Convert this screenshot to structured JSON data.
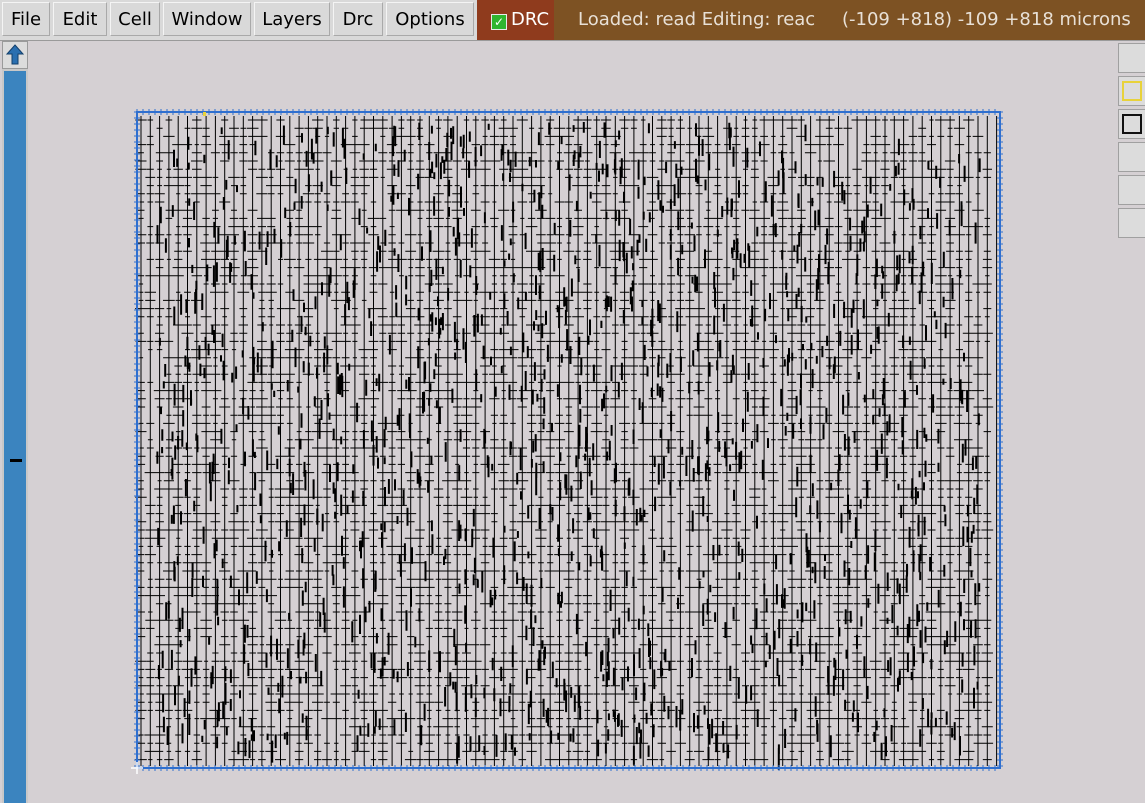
{
  "menu": {
    "file": "File",
    "edit": "Edit",
    "cell": "Cell",
    "window": "Window",
    "layers": "Layers",
    "drc": "Drc",
    "options": "Options"
  },
  "drc_toggle": {
    "label": "DRC",
    "checked": true
  },
  "status": {
    "loaded": "Loaded: read Editing: reac",
    "coords": "(-109 +818) -109 +818 microns"
  },
  "colors": {
    "menubar": "#d9d9d9",
    "drc_bg": "#8f3b1d",
    "status_bg": "#7d5223",
    "canvas_bg": "#d5d0d3",
    "boundary": "#2f6fcf",
    "geometry": "#000000",
    "scroll_thumb": "#3b84bf"
  },
  "icons": {
    "scroll_up": "up-arrow-icon",
    "palette": [
      "blank",
      "yellow-box-icon",
      "black-box-icon",
      "blank",
      "blank",
      "blank"
    ]
  }
}
